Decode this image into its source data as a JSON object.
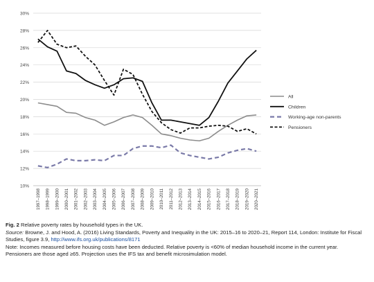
{
  "chart_data": {
    "type": "line",
    "x": [
      "1997–1998",
      "1998–1999",
      "1999–2000",
      "2000–2001",
      "2001–2002",
      "2002–2003",
      "2003–2004",
      "2004–2005",
      "2005–2006",
      "2006–2007",
      "2007–2008",
      "2008–2009",
      "2009–2010",
      "2010–2011",
      "2011–2012",
      "2012–2013",
      "2013–2014",
      "2014–2015",
      "2015–2016",
      "2016–2017",
      "2017–2018",
      "2018–2019",
      "2019–2020",
      "2020–2021"
    ],
    "yticks": [
      "10%",
      "12%",
      "14%",
      "16%",
      "18%",
      "20%",
      "22%",
      "24%",
      "26%",
      "28%",
      "30%"
    ],
    "ylim": [
      10,
      30
    ],
    "grid": true,
    "legend_position": "right",
    "series": [
      {
        "name": "All",
        "style": "solid-grey",
        "color": "#8c8c8c",
        "values": [
          19.6,
          19.4,
          19.2,
          18.5,
          18.4,
          17.9,
          17.6,
          17.0,
          17.4,
          17.9,
          18.2,
          17.9,
          17.0,
          16.0,
          15.8,
          15.5,
          15.3,
          15.2,
          15.5,
          16.3,
          17.0,
          17.6,
          18.1,
          18.2
        ]
      },
      {
        "name": "Children",
        "style": "solid-black",
        "color": "#111111",
        "values": [
          27.0,
          26.1,
          25.6,
          23.3,
          23.0,
          22.2,
          21.7,
          21.3,
          21.7,
          22.4,
          22.5,
          22.1,
          19.6,
          17.6,
          17.6,
          17.4,
          17.2,
          17.0,
          17.9,
          19.8,
          21.9,
          23.3,
          24.7,
          25.7
        ]
      },
      {
        "name": "Working-age non-parents",
        "style": "dashed-blue",
        "color": "#7a7aa8",
        "values": [
          12.3,
          12.1,
          12.5,
          13.1,
          12.9,
          12.9,
          13.0,
          12.9,
          13.5,
          13.5,
          14.3,
          14.6,
          14.6,
          14.4,
          14.7,
          13.8,
          13.5,
          13.3,
          13.1,
          13.3,
          13.8,
          14.1,
          14.3,
          14.0
        ]
      },
      {
        "name": "Pensioners",
        "style": "dashed-black",
        "color": "#111111",
        "values": [
          26.6,
          28.0,
          26.4,
          26.0,
          26.2,
          25.0,
          24.0,
          22.2,
          20.5,
          23.5,
          22.9,
          20.6,
          18.6,
          17.3,
          16.5,
          16.1,
          16.7,
          16.7,
          16.9,
          17.0,
          16.9,
          16.3,
          16.6,
          16.0
        ]
      }
    ]
  },
  "caption": {
    "fig_label": "Fig. 2",
    "fig_text": " Relative poverty rates by household types in the UK.",
    "source_label": "Source:",
    "source_text": " Browne, J. and Hood, A. (2016) Living Standards, Poverty and Inequality in the UK: 2015–16 to 2020–21, Report 114, London: Institute for Fiscal Studies, figure 3.9, ",
    "source_link": "http://www.ifs.org.uk/publications/8171",
    "note": "Note: Incomes measured before housing costs have been deducted. Relative poverty is <60% of median household income in the current year. Pensioners are those aged ≥65. Projection uses the IFS tax and benefit microsimulation model."
  }
}
